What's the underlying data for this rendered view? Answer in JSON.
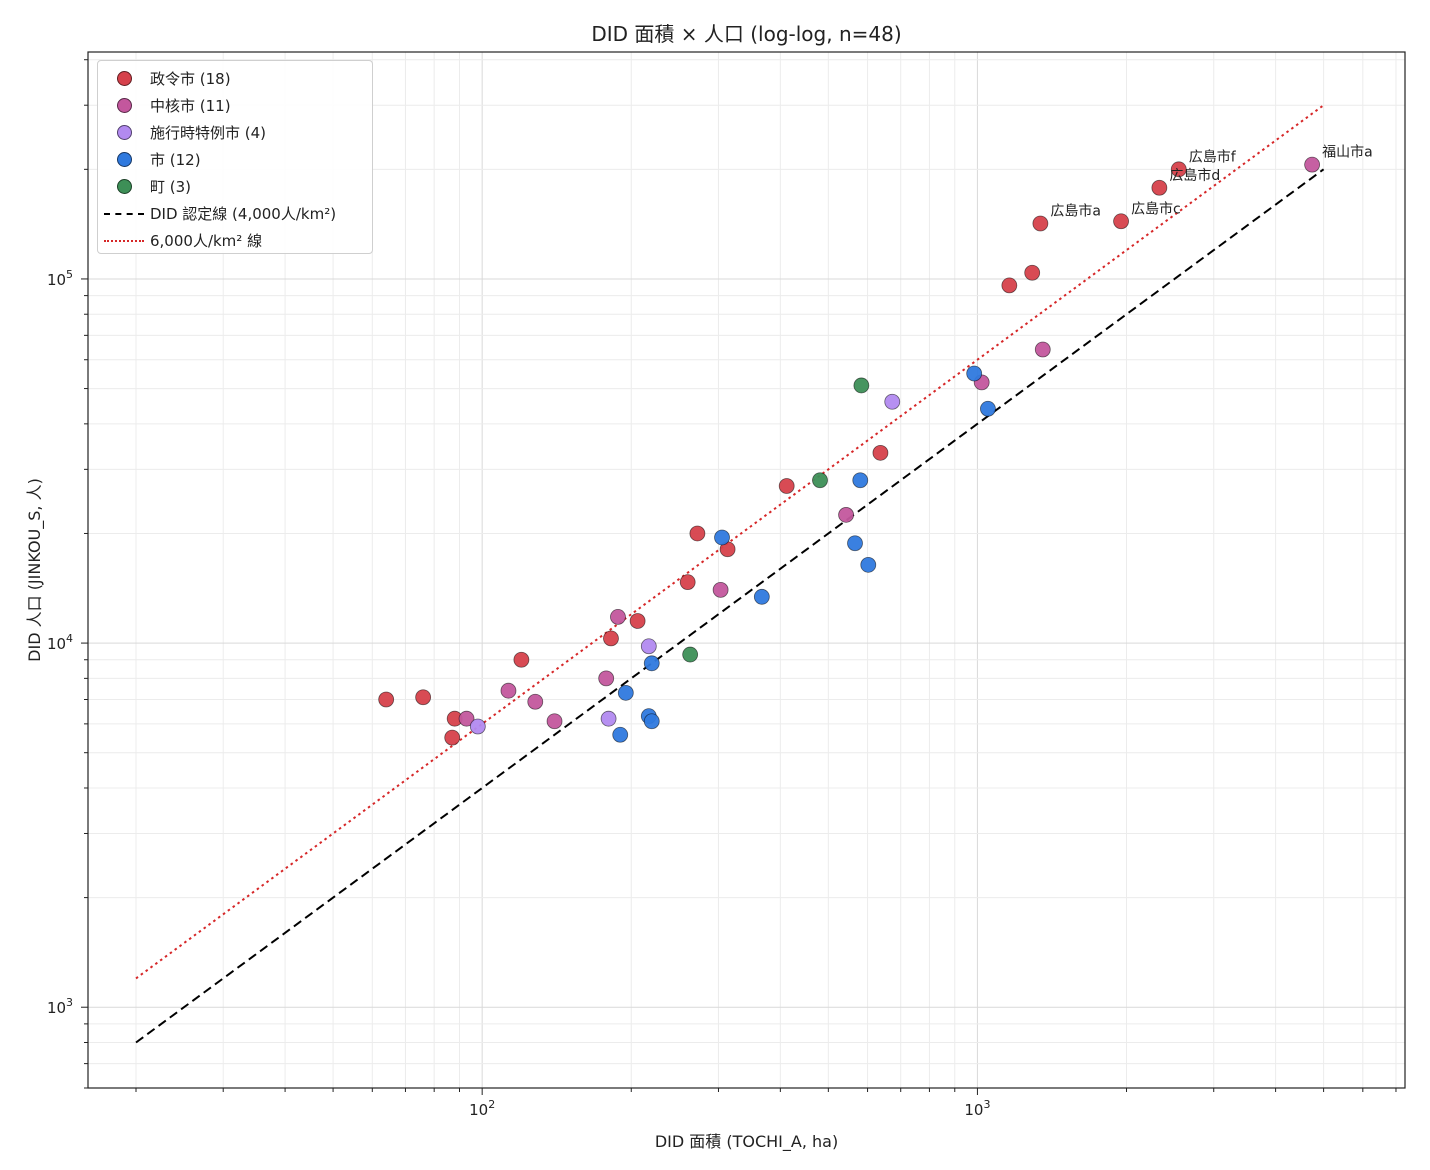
{
  "chart_data": {
    "type": "scatter",
    "title": "DID 面積 × 人口 (log-log, n=48)",
    "xlabel": "DID 面積 (TOCHI_A, ha)",
    "ylabel": "DID 人口 (JINKOU_S, 人)",
    "xscale": "log",
    "yscale": "log",
    "xlim": [
      16,
      7300
    ],
    "ylim": [
      600,
      420000
    ],
    "xticks": [
      {
        "value": 100,
        "base": "10",
        "exp": "2"
      },
      {
        "value": 1000,
        "base": "10",
        "exp": "3"
      }
    ],
    "yticks": [
      {
        "value": 1000,
        "base": "10",
        "exp": "3"
      },
      {
        "value": 10000,
        "base": "10",
        "exp": "4"
      },
      {
        "value": 100000,
        "base": "10",
        "exp": "5"
      }
    ],
    "grid": true,
    "legend_position": "top-left",
    "series": [
      {
        "name": "政令市 (18)",
        "color": "#d6414b",
        "points": [
          [
            64,
            7000
          ],
          [
            76,
            7100
          ],
          [
            88,
            6200
          ],
          [
            87,
            5500
          ],
          [
            120,
            9000
          ],
          [
            182,
            10300
          ],
          [
            206,
            11500
          ],
          [
            260,
            14700
          ],
          [
            272,
            20000
          ],
          [
            313,
            18100
          ],
          [
            412,
            27000
          ],
          [
            637,
            33300
          ],
          [
            1160,
            96000
          ],
          [
            1290,
            104000
          ],
          [
            1340,
            142000
          ],
          [
            1950,
            144000
          ],
          [
            2330,
            178000
          ],
          [
            2550,
            200000
          ]
        ]
      },
      {
        "name": "中核市 (11)",
        "color": "#c3579d",
        "points": [
          [
            93,
            6200
          ],
          [
            113,
            7400
          ],
          [
            128,
            6900
          ],
          [
            140,
            6100
          ],
          [
            178,
            8000
          ],
          [
            188,
            11800
          ],
          [
            303,
            14000
          ],
          [
            543,
            22500
          ],
          [
            1020,
            52000
          ],
          [
            1355,
            64000
          ],
          [
            4740,
            206000
          ]
        ]
      },
      {
        "name": "施行時特例市 (4)",
        "color": "#b28af0",
        "points": [
          [
            98,
            5900
          ],
          [
            180,
            6200
          ],
          [
            217,
            9800
          ],
          [
            673,
            46000
          ]
        ]
      },
      {
        "name": "市 (12)",
        "color": "#2f79de",
        "points": [
          [
            190,
            5600
          ],
          [
            195,
            7300
          ],
          [
            217,
            6300
          ],
          [
            220,
            6100
          ],
          [
            220,
            8800
          ],
          [
            305,
            19500
          ],
          [
            367,
            13400
          ],
          [
            566,
            18800
          ],
          [
            580,
            28000
          ],
          [
            602,
            16400
          ],
          [
            985,
            55000
          ],
          [
            1050,
            44000
          ]
        ]
      },
      {
        "name": "町 (3)",
        "color": "#3d8f57",
        "points": [
          [
            263,
            9300
          ],
          [
            481,
            28000
          ],
          [
            583,
            51000
          ]
        ]
      }
    ],
    "lines": [
      {
        "name": "DID 認定線 (4,000人/km²)",
        "color": "#000000",
        "style": "dashed",
        "x": [
          20,
          5000
        ],
        "y": [
          800,
          200000
        ]
      },
      {
        "name": "6,000人/km² 線",
        "color": "#d62728",
        "style": "dotted",
        "x": [
          20,
          5000
        ],
        "y": [
          1200,
          300000
        ]
      }
    ],
    "annotations": [
      {
        "text": "広島市f",
        "x": 2550,
        "y": 200000
      },
      {
        "text": "広島市d",
        "x": 2330,
        "y": 178000
      },
      {
        "text": "広島市a",
        "x": 1340,
        "y": 142000
      },
      {
        "text": "広島市c",
        "x": 1950,
        "y": 144000
      },
      {
        "text": "福山市a",
        "x": 4740,
        "y": 206000
      }
    ]
  }
}
